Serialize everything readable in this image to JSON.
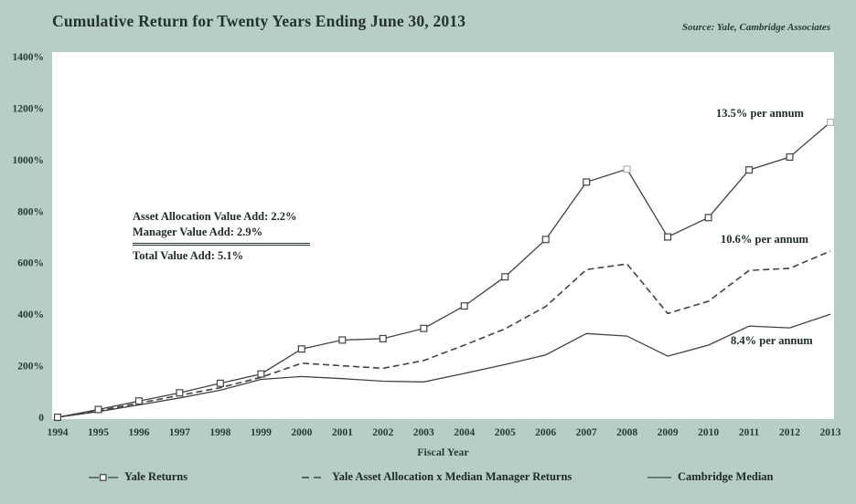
{
  "header": {
    "title": "Cumulative Return for Twenty Years Ending June 30, 2013",
    "source": "Source: Yale, Cambridge Associates"
  },
  "annotations": {
    "value_add_lines": [
      "Asset Allocation Value Add: 2.2%",
      "Manager Value Add: 2.9%"
    ],
    "value_add_total": "Total Value Add: 5.1%"
  },
  "chart_data": {
    "type": "line",
    "title": "Cumulative Return for Twenty Years Ending June 30, 2013",
    "xlabel": "Fiscal Year",
    "ylabel": "",
    "ylim": [
      0,
      1400
    ],
    "grid": false,
    "legend_position": "bottom",
    "background": "#b6cec3",
    "plot_background": "#ffffff",
    "line_color": "#3f4442",
    "yticks": [
      {
        "value": 1400,
        "label": "1400%"
      },
      {
        "value": 1200,
        "label": "1200%"
      },
      {
        "value": 1000,
        "label": "1000%"
      },
      {
        "value": 800,
        "label": "800%"
      },
      {
        "value": 600,
        "label": "600%"
      },
      {
        "value": 400,
        "label": "400%"
      },
      {
        "value": 200,
        "label": "200%"
      },
      {
        "value": 0,
        "label": "0"
      }
    ],
    "categories": [
      "1994",
      "1995",
      "1996",
      "1997",
      "1998",
      "1999",
      "2000",
      "2001",
      "2002",
      "2003",
      "2004",
      "2005",
      "2006",
      "2007",
      "2008",
      "2009",
      "2010",
      "2011",
      "2012",
      "2013"
    ],
    "series": [
      {
        "name": "Yale Returns",
        "style": "solid",
        "marker": "square",
        "muted_markers": [
          "2008",
          "2013"
        ],
        "annotation": "13.5% per annum",
        "values": [
          0,
          30,
          63,
          95,
          132,
          168,
          265,
          300,
          305,
          345,
          432,
          545,
          690,
          913,
          963,
          700,
          775,
          960,
          1010,
          1145
        ]
      },
      {
        "name": "Yale Asset Allocation x Median Manager Returns",
        "style": "dashed",
        "marker": "none",
        "annotation": "10.6% per annum",
        "values": [
          0,
          25,
          55,
          85,
          115,
          155,
          210,
          200,
          190,
          220,
          280,
          343,
          430,
          573,
          595,
          403,
          450,
          570,
          578,
          645
        ]
      },
      {
        "name": "Cambridge Median",
        "style": "solid",
        "marker": "none",
        "annotation": "8.4% per annum",
        "values": [
          0,
          22,
          48,
          75,
          105,
          147,
          158,
          150,
          140,
          137,
          170,
          205,
          242,
          325,
          315,
          237,
          280,
          354,
          347,
          400
        ]
      }
    ]
  }
}
